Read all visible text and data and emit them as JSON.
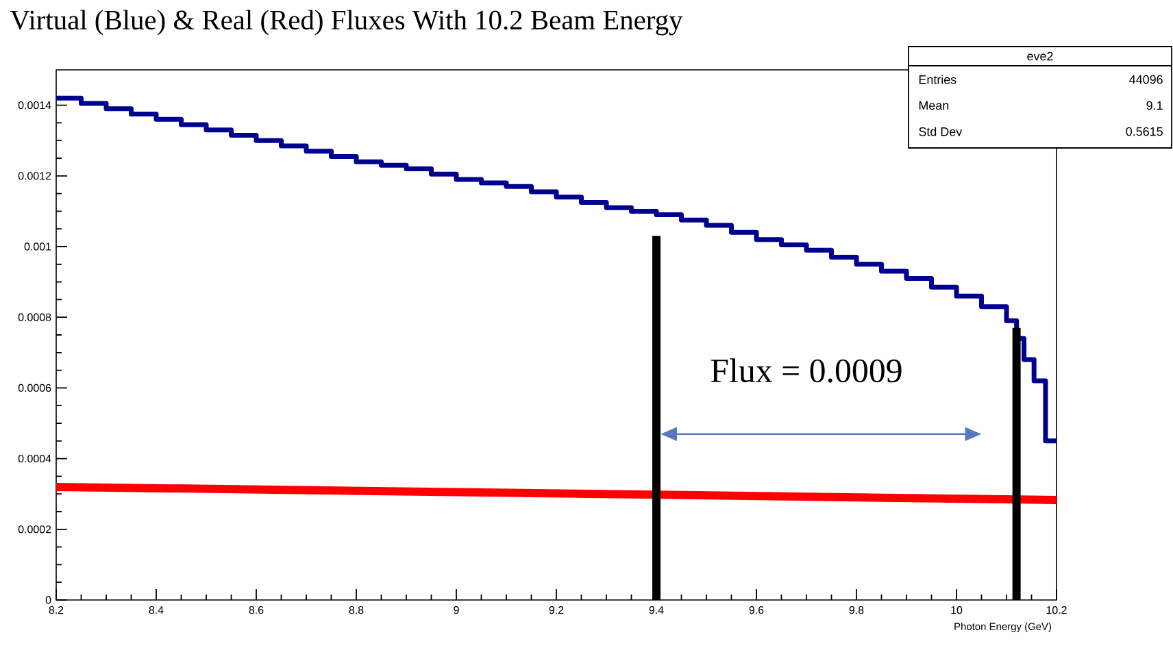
{
  "chart_data": {
    "type": "line",
    "title": "Virtual (Blue) & Real (Red) Fluxes With 10.2 Beam Energy",
    "xlabel": "Photon Energy (GeV)",
    "xlim": [
      8.2,
      10.2
    ],
    "ylim": [
      0,
      0.0015
    ],
    "xticks": [
      8.2,
      8.4,
      8.6,
      8.8,
      9,
      9.2,
      9.4,
      9.6,
      9.8,
      10,
      10.2
    ],
    "yticks": [
      0,
      0.0002,
      0.0004,
      0.0006,
      0.0008,
      0.001,
      0.0012,
      0.0014
    ],
    "series": [
      {
        "type": "step",
        "color": "#000090",
        "x": [
          8.2,
          8.25,
          8.3,
          8.35,
          8.4,
          8.45,
          8.5,
          8.55,
          8.6,
          8.65,
          8.7,
          8.75,
          8.8,
          8.85,
          8.9,
          8.95,
          9.0,
          9.05,
          9.1,
          9.15,
          9.2,
          9.25,
          9.3,
          9.35,
          9.4,
          9.45,
          9.5,
          9.55,
          9.6,
          9.65,
          9.7,
          9.75,
          9.8,
          9.85,
          9.9,
          9.95,
          10.0,
          10.05,
          10.1,
          10.12,
          10.135,
          10.155,
          10.178,
          10.2
        ],
        "values": [
          0.00142,
          0.001405,
          0.00139,
          0.001375,
          0.00136,
          0.001345,
          0.00133,
          0.001315,
          0.0013,
          0.001285,
          0.00127,
          0.001255,
          0.00124,
          0.00123,
          0.00122,
          0.001205,
          0.00119,
          0.00118,
          0.00117,
          0.001155,
          0.00114,
          0.001125,
          0.00111,
          0.0011,
          0.00109,
          0.001075,
          0.00106,
          0.00104,
          0.00102,
          0.001005,
          0.00099,
          0.00097,
          0.00095,
          0.00093,
          0.00091,
          0.000885,
          0.00086,
          0.00083,
          0.00079,
          0.00074,
          0.00068,
          0.00062,
          0.00045,
          0.00045
        ]
      },
      {
        "color": "#ff0000",
        "x": [
          8.2,
          10.2
        ],
        "values": [
          0.00032,
          0.000283
        ]
      },
      {
        "color": "#000000",
        "x": [
          9.4,
          9.4
        ],
        "values": [
          0,
          0.00103
        ]
      },
      {
        "color": "#000000",
        "x": [
          10.12,
          10.12
        ],
        "values": [
          0,
          0.00077
        ]
      }
    ],
    "annotations": [
      "Flux = 0.0009",
      "eve2",
      "Entries",
      "44096",
      "Mean",
      "9.1",
      "Std Dev",
      "0.5615"
    ]
  }
}
